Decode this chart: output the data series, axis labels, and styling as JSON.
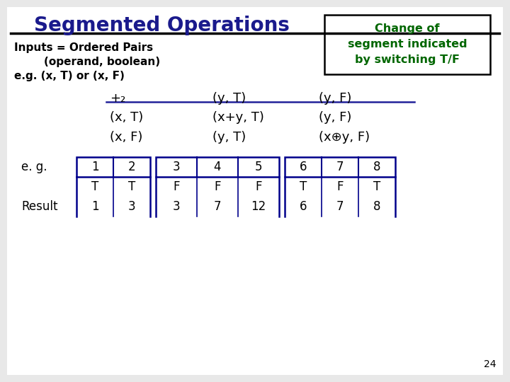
{
  "title": "Segmented Operations",
  "title_color": "#1a1a8c",
  "title_fontsize": 20,
  "bg_color": "#e8e8e8",
  "inputs_line1": "Inputs = Ordered Pairs",
  "inputs_line2": "        (operand, boolean)",
  "inputs_line3": "e.g. (x, T) or (x, F)",
  "box_text_line1": "Change of",
  "box_text_line2": "segment indicated",
  "box_text_line3": "by switching T/F",
  "box_color": "#006600",
  "table_op_col0": "+₂",
  "table_op_col1": "(y, T)",
  "table_op_col2": "(y, F)",
  "table_row1_col0": "(x, T)",
  "table_row1_col1": "(x+y, T)",
  "table_row1_col2": "(y, F)",
  "table_row2_col0": "(x, F)",
  "table_row2_col1": "(y, T)",
  "table_row2_col2": "(x⊕y, F)",
  "eg_label": "e. g.",
  "result_label": "Result",
  "eg_values": [
    "1",
    "2",
    "3",
    "4",
    "5",
    "6",
    "7",
    "8"
  ],
  "bool_values": [
    "T",
    "T",
    "F",
    "F",
    "F",
    "T",
    "F",
    "T"
  ],
  "result_values": [
    "1",
    "3",
    "3",
    "7",
    "12",
    "6",
    "7",
    "8"
  ],
  "page_num": "24",
  "border_color": "#00008B"
}
